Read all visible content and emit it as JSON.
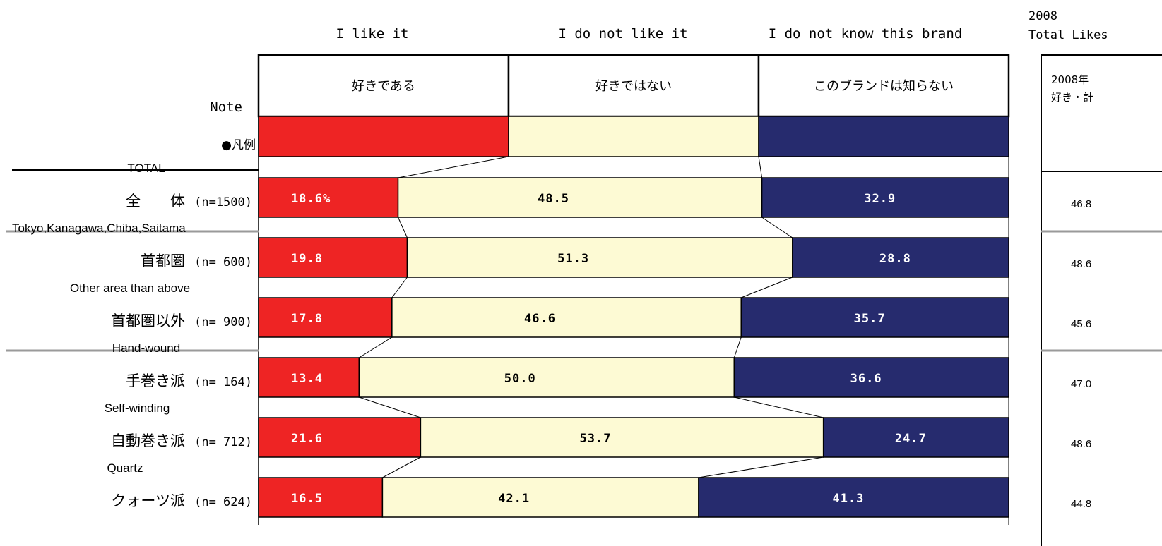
{
  "header": {
    "col_en": [
      "I like it",
      "I do not like it",
      "I do not know this brand"
    ],
    "col_jp": [
      "好きである",
      "好きではない",
      "このブランドは知らない"
    ],
    "note_label": "Note",
    "legend_label": "●凡例",
    "year_label": "2008",
    "total_likes_label": "Total Likes",
    "total_header_line1": "2008年",
    "total_header_line2": "好き・計"
  },
  "colors": {
    "like": "#ee2424",
    "dislike": "#fdfad4",
    "unknown": "#262b6e",
    "like_text": "#ffffff",
    "dislike_text": "#000000",
    "unknown_text": "#ffffff"
  },
  "chart_data": {
    "type": "bar",
    "stacked": true,
    "orientation": "horizontal",
    "percent_stacked": true,
    "series_names": [
      "I like it",
      "I do not like it",
      "I do not know this brand"
    ],
    "rows": [
      {
        "en": "TOTAL",
        "jp": "全　　体",
        "n": "(n=1500)",
        "values": [
          18.6,
          48.5,
          32.9
        ],
        "value_labels": [
          "18.6%",
          "48.5",
          "32.9"
        ],
        "total_likes": "46.8"
      },
      {
        "en": "Tokyo,Kanagawa,Chiba,Saitama",
        "jp": "首都圏",
        "n": "(n= 600)",
        "values": [
          19.8,
          51.3,
          28.8
        ],
        "value_labels": [
          "19.8",
          "51.3",
          "28.8"
        ],
        "total_likes": "48.6"
      },
      {
        "en": "Other area than above",
        "jp": "首都圏以外",
        "n": "(n= 900)",
        "values": [
          17.8,
          46.6,
          35.7
        ],
        "value_labels": [
          "17.8",
          "46.6",
          "35.7"
        ],
        "total_likes": "45.6"
      },
      {
        "en": "Hand-wound",
        "jp": "手巻き派",
        "n": "(n= 164)",
        "values": [
          13.4,
          50.0,
          36.6
        ],
        "value_labels": [
          "13.4",
          "50.0",
          "36.6"
        ],
        "total_likes": "47.0"
      },
      {
        "en": "Self-winding",
        "jp": "自動巻き派",
        "n": "(n= 712)",
        "values": [
          21.6,
          53.7,
          24.7
        ],
        "value_labels": [
          "21.6",
          "53.7",
          "24.7"
        ],
        "total_likes": "48.6"
      },
      {
        "en": "Quartz",
        "jp": "クォーツ派",
        "n": "(n= 624)",
        "values": [
          16.5,
          42.1,
          41.3
        ],
        "value_labels": [
          "16.5",
          "42.1",
          "41.3"
        ],
        "total_likes": "44.8"
      }
    ]
  }
}
